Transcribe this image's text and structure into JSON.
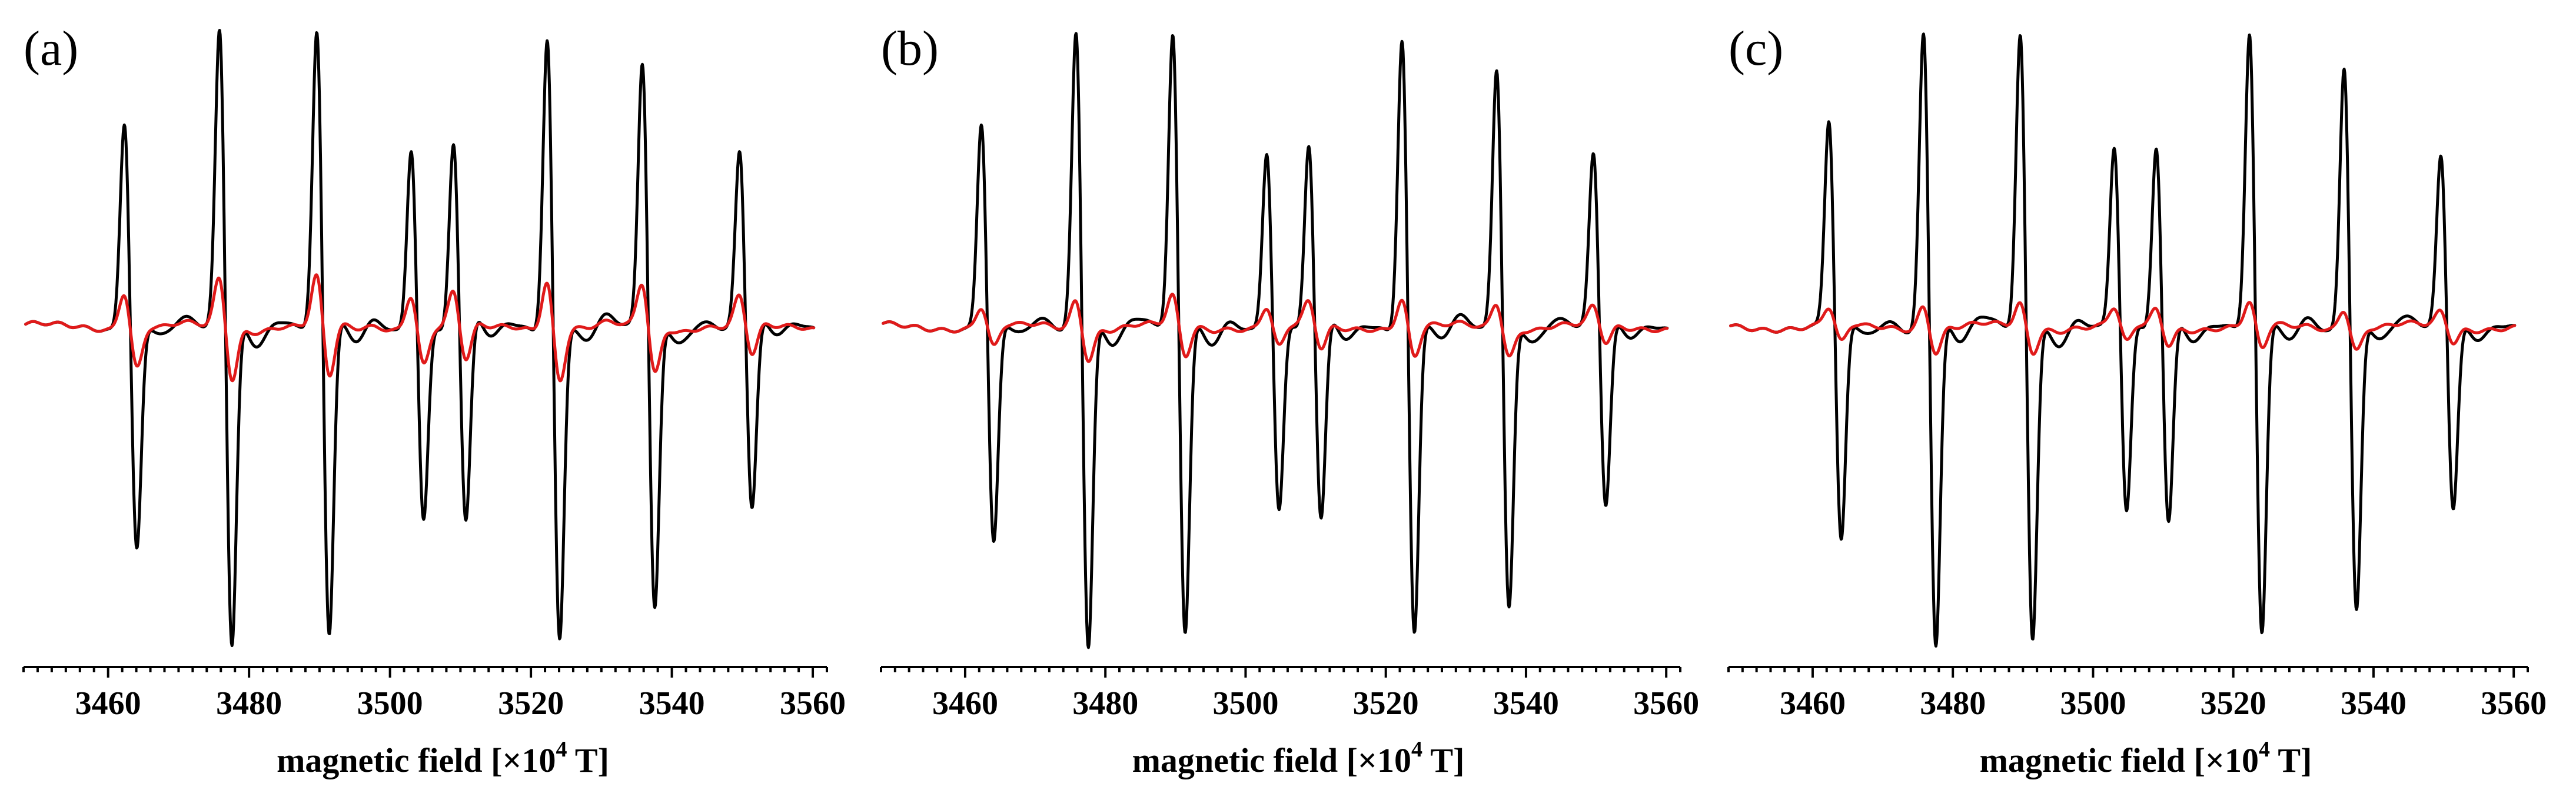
{
  "chart_data": [
    {
      "type": "line",
      "panel_label": "(a)",
      "xlabel_main": "magnetic field [×10",
      "xlabel_sup": "4",
      "xlabel_tail": " T]",
      "xlim": [
        3448,
        3562
      ],
      "x_ticks": [
        3460,
        3480,
        3500,
        3520,
        3540,
        3560
      ],
      "ylabel": "",
      "series": [
        {
          "name": "black spectrum",
          "color": "#000000",
          "peaks": [
            {
              "x": 3462.5,
              "amp": 0.7
            },
            {
              "x": 3476.0,
              "amp": 1.0
            },
            {
              "x": 3489.8,
              "amp": 0.98
            },
            {
              "x": 3503.2,
              "amp": 0.61
            },
            {
              "x": 3509.2,
              "amp": 0.63
            },
            {
              "x": 3522.5,
              "amp": 0.98
            },
            {
              "x": 3536.0,
              "amp": 0.89
            },
            {
              "x": 3549.8,
              "amp": 0.58
            }
          ]
        },
        {
          "name": "red spectrum",
          "color": "#e01a1a",
          "peaks": [
            {
              "x": 3462.5,
              "amp": 0.13
            },
            {
              "x": 3476.0,
              "amp": 0.17
            },
            {
              "x": 3489.8,
              "amp": 0.17
            },
            {
              "x": 3503.2,
              "amp": 0.12
            },
            {
              "x": 3509.2,
              "amp": 0.12
            },
            {
              "x": 3522.5,
              "amp": 0.17
            },
            {
              "x": 3536.0,
              "amp": 0.15
            },
            {
              "x": 3549.8,
              "amp": 0.1
            }
          ]
        }
      ]
    },
    {
      "type": "line",
      "panel_label": "(b)",
      "xlabel_main": "magnetic field [×10",
      "xlabel_sup": "4",
      "xlabel_tail": " T]",
      "xlim": [
        3448,
        3562
      ],
      "x_ticks": [
        3460,
        3480,
        3500,
        3520,
        3540,
        3560
      ],
      "ylabel": "",
      "series": [
        {
          "name": "black spectrum",
          "color": "#000000",
          "peaks": [
            {
              "x": 3462.5,
              "amp": 0.69
            },
            {
              "x": 3476.0,
              "amp": 1.0
            },
            {
              "x": 3489.8,
              "amp": 0.97
            },
            {
              "x": 3503.2,
              "amp": 0.59
            },
            {
              "x": 3509.2,
              "amp": 0.62
            },
            {
              "x": 3522.5,
              "amp": 0.97
            },
            {
              "x": 3536.0,
              "amp": 0.88
            },
            {
              "x": 3549.8,
              "amp": 0.57
            }
          ]
        },
        {
          "name": "red spectrum",
          "color": "#e01a1a",
          "peaks": [
            {
              "x": 3462.5,
              "amp": 0.07
            },
            {
              "x": 3476.0,
              "amp": 0.1
            },
            {
              "x": 3489.8,
              "amp": 0.1
            },
            {
              "x": 3503.2,
              "amp": 0.07
            },
            {
              "x": 3509.2,
              "amp": 0.08
            },
            {
              "x": 3522.5,
              "amp": 0.1
            },
            {
              "x": 3536.0,
              "amp": 0.09
            },
            {
              "x": 3549.8,
              "amp": 0.06
            }
          ]
        }
      ]
    },
    {
      "type": "line",
      "panel_label": "(c)",
      "xlabel_main": "magnetic field [×10",
      "xlabel_sup": "4",
      "xlabel_tail": " T]",
      "xlim": [
        3448,
        3562
      ],
      "x_ticks": [
        3460,
        3480,
        3500,
        3520,
        3540,
        3560
      ],
      "ylabel": "",
      "series": [
        {
          "name": "black spectrum",
          "color": "#000000",
          "peaks": [
            {
              "x": 3462.5,
              "amp": 0.69
            },
            {
              "x": 3476.0,
              "amp": 1.0
            },
            {
              "x": 3489.8,
              "amp": 0.98
            },
            {
              "x": 3503.2,
              "amp": 0.6
            },
            {
              "x": 3509.2,
              "amp": 0.62
            },
            {
              "x": 3522.5,
              "amp": 0.98
            },
            {
              "x": 3536.0,
              "amp": 0.89
            },
            {
              "x": 3549.8,
              "amp": 0.57
            }
          ]
        },
        {
          "name": "red spectrum",
          "color": "#e01a1a",
          "peaks": [
            {
              "x": 3462.5,
              "amp": 0.06
            },
            {
              "x": 3476.0,
              "amp": 0.08
            },
            {
              "x": 3489.8,
              "amp": 0.08
            },
            {
              "x": 3503.2,
              "amp": 0.06
            },
            {
              "x": 3509.2,
              "amp": 0.06
            },
            {
              "x": 3522.5,
              "amp": 0.08
            },
            {
              "x": 3536.0,
              "amp": 0.07
            },
            {
              "x": 3549.8,
              "amp": 0.05
            }
          ]
        }
      ]
    }
  ]
}
